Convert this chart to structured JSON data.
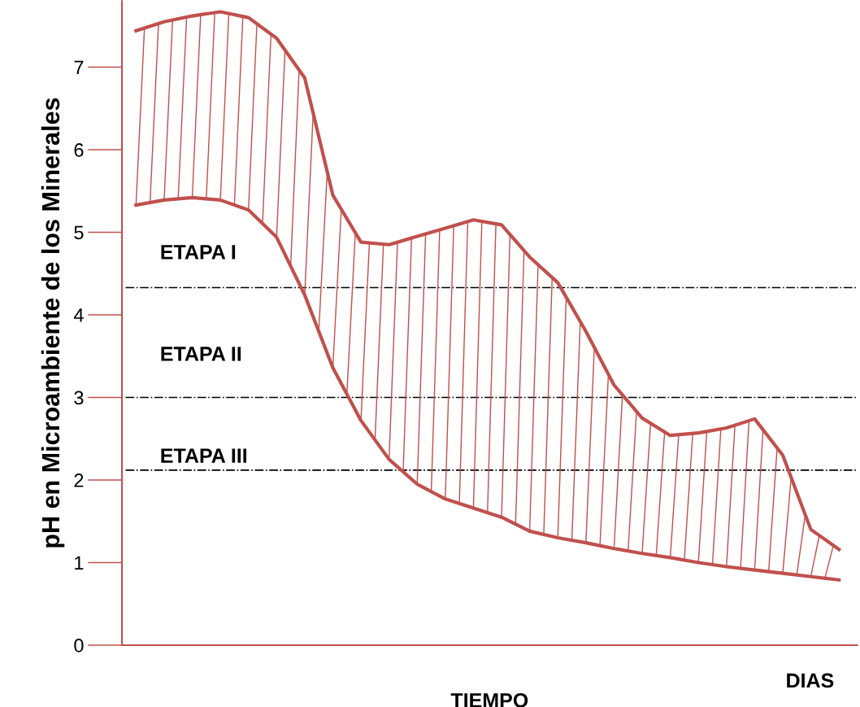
{
  "chart_data": {
    "type": "line",
    "xlabel": "TIEMPO",
    "ylabel": "pH en Microambiente de los Minerales",
    "categories": [
      null,
      null,
      null,
      null,
      null,
      null,
      null,
      null,
      null,
      null,
      null,
      null,
      null,
      null,
      null,
      null,
      null,
      null,
      null,
      null,
      null,
      null,
      null,
      null,
      null,
      null
    ],
    "ylim": [
      0,
      7.8
    ],
    "yticks": [
      0,
      1,
      2,
      3,
      4,
      5,
      6,
      7
    ],
    "tick_labels": "y",
    "series": [
      {
        "color": "#c0504d",
        "values": [
          7.44,
          7.55,
          7.62,
          7.67,
          7.6,
          7.35,
          6.87,
          5.45,
          4.88,
          4.85,
          4.95,
          5.05,
          5.15,
          5.09,
          4.7,
          4.39,
          3.8,
          3.15,
          2.75,
          2.54,
          2.57,
          2.63,
          2.74,
          2.3,
          1.4,
          1.16
        ]
      },
      {
        "color": "#c0504d",
        "values": [
          5.33,
          5.39,
          5.42,
          5.39,
          5.27,
          4.94,
          4.24,
          3.36,
          2.72,
          2.25,
          1.95,
          1.77,
          1.66,
          1.55,
          1.38,
          1.3,
          1.24,
          1.17,
          1.11,
          1.06,
          1.0,
          0.95,
          0.91,
          0.87,
          0.83,
          0.79
        ]
      }
    ],
    "ref_lines": [
      {
        "axis": "y",
        "value": 4.33,
        "label": null,
        "color": "#000000",
        "line_style": "dashdot"
      },
      {
        "axis": "y",
        "value": 3.0,
        "label": null,
        "color": "#000000",
        "line_style": "dashdot"
      },
      {
        "axis": "y",
        "value": 2.12,
        "label": null,
        "color": "#000000",
        "line_style": "dashdot"
      }
    ],
    "annotations": [
      "ETAPA I",
      "ETAPA II",
      "ETAPA III",
      "DIAS"
    ]
  }
}
